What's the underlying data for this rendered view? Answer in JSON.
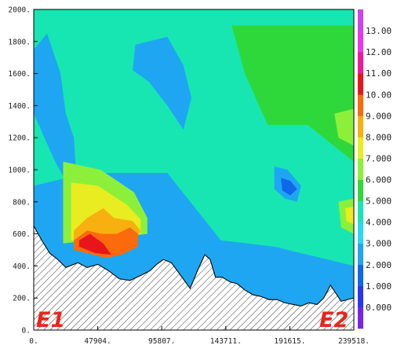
{
  "chart_data": {
    "type": "heatmap",
    "title": "",
    "xlabel": "",
    "ylabel": "",
    "xlim": [
      0,
      239518
    ],
    "ylim": [
      0,
      2000
    ],
    "x_ticks": [
      {
        "value": 0,
        "label": "0."
      },
      {
        "value": 47904,
        "label": "47904."
      },
      {
        "value": 95807,
        "label": "95807."
      },
      {
        "value": 143711,
        "label": "143711."
      },
      {
        "value": 191615,
        "label": "191615."
      },
      {
        "value": 239518,
        "label": "239518."
      }
    ],
    "y_ticks": [
      {
        "value": 0,
        "label": "0."
      },
      {
        "value": 200,
        "label": "200."
      },
      {
        "value": 400,
        "label": "400."
      },
      {
        "value": 600,
        "label": "600."
      },
      {
        "value": 800,
        "label": "800."
      },
      {
        "value": 1000,
        "label": "1000."
      },
      {
        "value": 1200,
        "label": "1200."
      },
      {
        "value": 1400,
        "label": "1400."
      },
      {
        "value": 1600,
        "label": "1600."
      },
      {
        "value": 1800,
        "label": "1800."
      },
      {
        "value": 2000,
        "label": "2000."
      }
    ],
    "colorbar": {
      "labels": [
        "0.000",
        "1.000",
        "2.000",
        "3.000",
        "4.000",
        "5.000",
        "6.000",
        "7.000",
        "8.000",
        "9.000",
        "10.00",
        "11.00",
        "12.00",
        "13.00"
      ],
      "colors": [
        "#7a22e6",
        "#2a35f0",
        "#0f67ea",
        "#1ea6f2",
        "#27d8f0",
        "#17e6b2",
        "#2fd83a",
        "#8cf03a",
        "#e8ec21",
        "#f7b00f",
        "#fb6a0b",
        "#e8161a",
        "#f0199a",
        "#ea37e8",
        "#cc44f0"
      ]
    },
    "terrain": {
      "x": [
        0,
        6000,
        12000,
        18000,
        24000,
        33000,
        40000,
        48000,
        56000,
        64000,
        72000,
        80000,
        87000,
        92000,
        97000,
        103000,
        110000,
        117000,
        123000,
        128000,
        132000,
        136000,
        141000,
        147000,
        152000,
        158000,
        164000,
        170000,
        176000,
        182000,
        188000,
        194000,
        200000,
        206000,
        212000,
        217000,
        222000,
        226000,
        230000,
        235000,
        239518
      ],
      "y": [
        650,
        560,
        480,
        440,
        390,
        420,
        390,
        410,
        370,
        320,
        310,
        340,
        370,
        410,
        440,
        420,
        340,
        260,
        380,
        470,
        440,
        330,
        330,
        300,
        290,
        250,
        220,
        210,
        190,
        190,
        170,
        160,
        150,
        170,
        160,
        200,
        280,
        230,
        180,
        190,
        200
      ]
    },
    "contours": [
      {
        "level": 4,
        "points": [
          [
            0,
            2000
          ],
          [
            239518,
            2000
          ],
          [
            239518,
            400
          ],
          [
            180000,
            520
          ],
          [
            140000,
            560
          ],
          [
            100000,
            980
          ],
          [
            40000,
            980
          ],
          [
            0,
            900
          ]
        ]
      },
      {
        "level": 5,
        "points": [
          [
            148000,
            1900
          ],
          [
            239518,
            1900
          ],
          [
            239518,
            1050
          ],
          [
            205000,
            1280
          ],
          [
            175000,
            1280
          ],
          [
            158000,
            1600
          ]
        ]
      },
      {
        "level": 2,
        "points": [
          [
            0,
            1750
          ],
          [
            10000,
            1850
          ],
          [
            20000,
            1600
          ],
          [
            24000,
            1350
          ],
          [
            30000,
            1200
          ],
          [
            32000,
            950
          ],
          [
            26000,
            900
          ],
          [
            16000,
            1050
          ],
          [
            8000,
            1200
          ],
          [
            0,
            1350
          ]
        ]
      },
      {
        "level": 2,
        "points": [
          [
            76000,
            1780
          ],
          [
            100000,
            1830
          ],
          [
            112000,
            1650
          ],
          [
            118000,
            1450
          ],
          [
            112000,
            1250
          ],
          [
            100000,
            1400
          ],
          [
            86000,
            1550
          ],
          [
            74000,
            1620
          ]
        ]
      },
      {
        "level": 6,
        "points": [
          [
            22000,
            1050
          ],
          [
            50000,
            1000
          ],
          [
            75000,
            860
          ],
          [
            85000,
            700
          ],
          [
            85000,
            600
          ],
          [
            22000,
            540
          ]
        ]
      },
      {
        "level": 7,
        "points": [
          [
            28000,
            920
          ],
          [
            48000,
            900
          ],
          [
            70000,
            780
          ],
          [
            80000,
            690
          ],
          [
            80000,
            600
          ],
          [
            28000,
            560
          ]
        ]
      },
      {
        "level": 8,
        "points": [
          [
            30000,
            620
          ],
          [
            40000,
            700
          ],
          [
            52000,
            760
          ],
          [
            60000,
            700
          ],
          [
            74000,
            680
          ],
          [
            80000,
            620
          ],
          [
            76000,
            560
          ],
          [
            30000,
            560
          ]
        ]
      },
      {
        "level": 9,
        "points": [
          [
            30000,
            560
          ],
          [
            40000,
            620
          ],
          [
            50000,
            600
          ],
          [
            62000,
            600
          ],
          [
            72000,
            640
          ],
          [
            78000,
            600
          ],
          [
            78000,
            520
          ],
          [
            66000,
            470
          ],
          [
            54000,
            450
          ],
          [
            30000,
            500
          ]
        ]
      },
      {
        "level": 10,
        "points": [
          [
            34000,
            560
          ],
          [
            42000,
            600
          ],
          [
            52000,
            540
          ],
          [
            58000,
            470
          ],
          [
            46000,
            480
          ],
          [
            34000,
            520
          ]
        ]
      },
      {
        "level": 2,
        "points": [
          [
            180000,
            1020
          ],
          [
            190000,
            1000
          ],
          [
            200000,
            900
          ],
          [
            197000,
            800
          ],
          [
            188000,
            820
          ],
          [
            180000,
            880
          ]
        ]
      },
      {
        "level": 1,
        "points": [
          [
            185000,
            950
          ],
          [
            192000,
            930
          ],
          [
            197000,
            880
          ],
          [
            192000,
            840
          ],
          [
            186000,
            870
          ]
        ]
      },
      {
        "level": 6,
        "points": [
          [
            225000,
            1350
          ],
          [
            239518,
            1380
          ],
          [
            239518,
            1150
          ],
          [
            228000,
            1200
          ]
        ]
      },
      {
        "level": 6,
        "points": [
          [
            228000,
            800
          ],
          [
            239518,
            820
          ],
          [
            239518,
            600
          ],
          [
            230000,
            640
          ]
        ]
      },
      {
        "level": 7,
        "points": [
          [
            233000,
            760
          ],
          [
            239518,
            770
          ],
          [
            239518,
            660
          ],
          [
            234000,
            680
          ]
        ]
      }
    ],
    "annotations": [
      "E1",
      "E2"
    ]
  }
}
